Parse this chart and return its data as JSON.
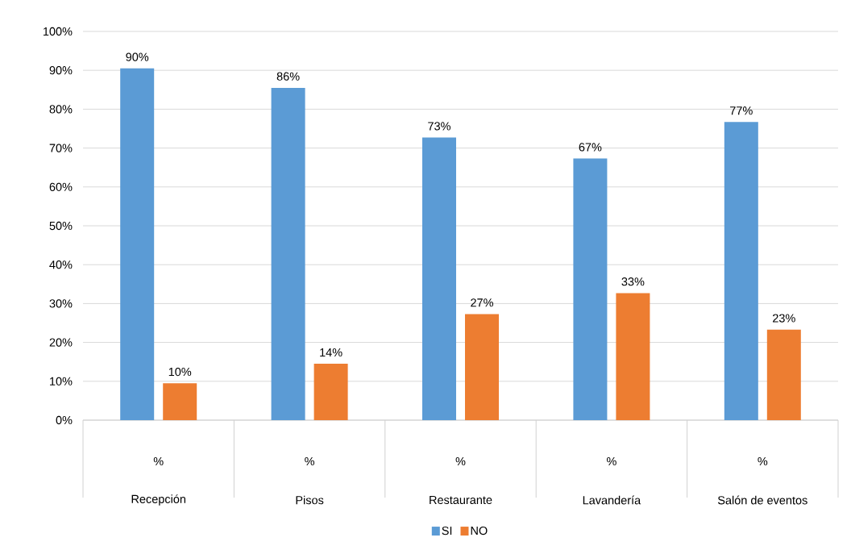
{
  "chart_data": {
    "type": "bar",
    "categories": [
      "Recepción",
      "Pisos",
      "Restaurante",
      "Lavandería",
      "Salón de eventos"
    ],
    "annotations": [
      "%",
      "%",
      "%",
      "%",
      "%"
    ],
    "series": [
      {
        "name": "SI",
        "color": "#5b9bd5",
        "values": [
          90.5,
          85.5,
          72.7,
          67.3,
          76.7
        ],
        "value_labels": [
          "90%",
          "86%",
          "73%",
          "67%",
          "77%"
        ]
      },
      {
        "name": "NO",
        "color": "#ed7d31",
        "values": [
          9.5,
          14.5,
          27.3,
          32.7,
          23.3
        ],
        "value_labels": [
          "10%",
          "14%",
          "27%",
          "33%",
          "23%"
        ]
      }
    ],
    "ylim": [
      0,
      100
    ],
    "yticks": [
      {
        "value": 0,
        "label": "0%"
      },
      {
        "value": 10,
        "label": "10%"
      },
      {
        "value": 20,
        "label": "20%"
      },
      {
        "value": 30,
        "label": "30%"
      },
      {
        "value": 40,
        "label": "40%"
      },
      {
        "value": 50,
        "label": "50%"
      },
      {
        "value": 60,
        "label": "60%"
      },
      {
        "value": 70,
        "label": "70%"
      },
      {
        "value": 80,
        "label": "80%"
      },
      {
        "value": 90,
        "label": "90%"
      },
      {
        "value": 100,
        "label": "100%"
      }
    ],
    "grid": "y",
    "legend": "bottom"
  }
}
